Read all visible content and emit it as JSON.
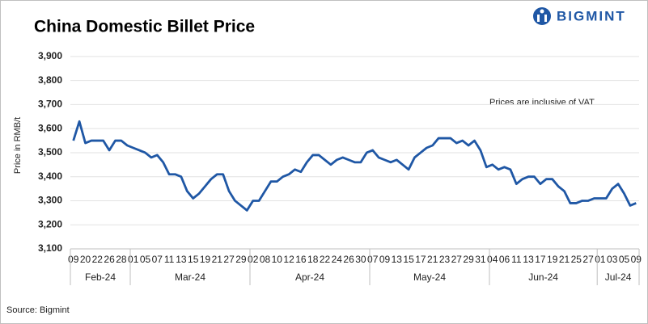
{
  "logo": "BIGMINT",
  "source": "Source: Bigmint",
  "chart_data": {
    "type": "line",
    "title": "China Domestic Billet Price",
    "y_label": "Price in RMB/t",
    "annotation": "Prices are inclusive of VAT",
    "months": [
      "Feb-24",
      "Mar-24",
      "Apr-24",
      "May-24",
      "Jun-24",
      "Jul-24"
    ],
    "categories": [
      "09",
      null,
      "20",
      null,
      "22",
      null,
      "26",
      null,
      "28",
      null,
      "01",
      null,
      "05",
      null,
      "07",
      null,
      "11",
      null,
      "13",
      null,
      "15",
      null,
      "19",
      null,
      "21",
      null,
      "27",
      null,
      "29",
      null,
      "02",
      null,
      "08",
      null,
      "10",
      null,
      "12",
      null,
      "16",
      null,
      "18",
      null,
      "22",
      null,
      "24",
      null,
      "26",
      null,
      "30",
      null,
      "07",
      null,
      "09",
      null,
      "13",
      null,
      "15",
      null,
      "17",
      null,
      "21",
      null,
      "23",
      null,
      "27",
      null,
      "29",
      null,
      "31",
      null,
      "04",
      null,
      "06",
      null,
      "11",
      null,
      "13",
      null,
      "17",
      null,
      "19",
      null,
      "21",
      null,
      "25",
      null,
      "27",
      null,
      "01",
      null,
      "03",
      null,
      "05",
      null,
      "09"
    ],
    "series": [
      {
        "name": "China Domestic Billet Price",
        "color": "#1f57a5",
        "values": [
          3550,
          3630,
          3540,
          3550,
          3550,
          3550,
          3510,
          3550,
          3550,
          3530,
          3520,
          3510,
          3500,
          3480,
          3490,
          3460,
          3410,
          3410,
          3400,
          3340,
          3310,
          3330,
          3360,
          3390,
          3410,
          3410,
          3340,
          3300,
          3280,
          3260,
          3300,
          3300,
          3340,
          3380,
          3380,
          3400,
          3410,
          3430,
          3420,
          3460,
          3490,
          3490,
          3470,
          3450,
          3470,
          3480,
          3470,
          3460,
          3460,
          3500,
          3510,
          3480,
          3470,
          3460,
          3470,
          3450,
          3430,
          3480,
          3500,
          3520,
          3530,
          3560,
          3560,
          3560,
          3540,
          3550,
          3530,
          3550,
          3510,
          3440,
          3450,
          3430,
          3440,
          3430,
          3370,
          3390,
          3400,
          3400,
          3370,
          3390,
          3390,
          3360,
          3340,
          3290,
          3290,
          3300,
          3300,
          3310,
          3310,
          3310,
          3350,
          3370,
          3330,
          3280,
          3290
        ]
      }
    ],
    "ylim": [
      3100,
      3950
    ],
    "yticks": [
      {
        "value": 3100,
        "label": "3,100"
      },
      {
        "value": 3200,
        "label": "3,200"
      },
      {
        "value": 3300,
        "label": "3,300"
      },
      {
        "value": 3400,
        "label": "3,400"
      },
      {
        "value": 3500,
        "label": "3,500"
      },
      {
        "value": 3600,
        "label": "3,600"
      },
      {
        "value": 3700,
        "label": "3,700"
      },
      {
        "value": 3800,
        "label": "3,800"
      },
      {
        "value": 3900,
        "label": "3,900"
      }
    ],
    "grid": true
  }
}
